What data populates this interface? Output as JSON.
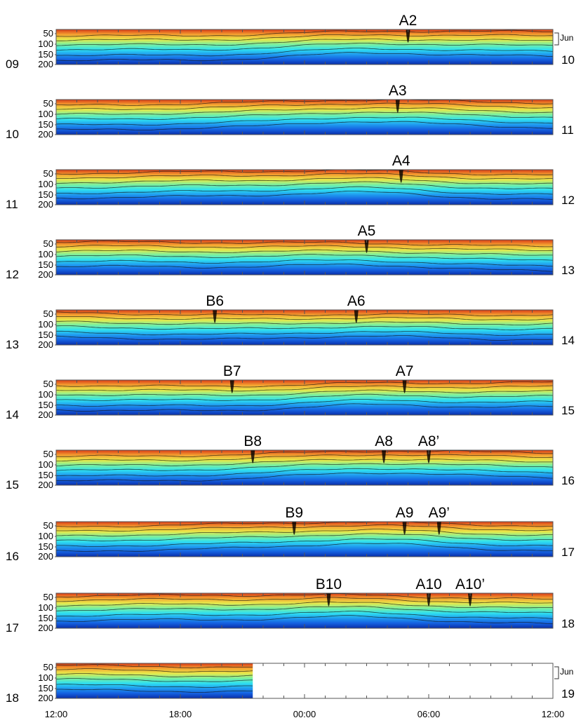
{
  "chart_data": {
    "type": "heatmap",
    "title": "",
    "xlabel": "",
    "ylabel": "",
    "ytick_labels": [
      "50",
      "100",
      "150",
      "200"
    ],
    "x_tick_labels": [
      "12:00",
      "18:00",
      "00:00",
      "06:00",
      "12:00"
    ],
    "month_label": "Jun",
    "colormap": [
      "#0a2fa8",
      "#1560e0",
      "#1f9cf0",
      "#2fe0f0",
      "#7af0a0",
      "#e8e84a",
      "#f5a030",
      "#d83a18"
    ],
    "panels": [
      {
        "start_day": "09",
        "end_day": "10",
        "show_month": true,
        "events": [
          {
            "label": "A2",
            "time": "05:00"
          }
        ]
      },
      {
        "start_day": "10",
        "end_day": "11",
        "show_month": false,
        "events": [
          {
            "label": "A3",
            "time": "04:30"
          }
        ]
      },
      {
        "start_day": "11",
        "end_day": "12",
        "show_month": false,
        "events": [
          {
            "label": "A4",
            "time": "04:40"
          }
        ]
      },
      {
        "start_day": "12",
        "end_day": "13",
        "show_month": false,
        "events": [
          {
            "label": "A5",
            "time": "03:00"
          }
        ]
      },
      {
        "start_day": "13",
        "end_day": "14",
        "show_month": false,
        "events": [
          {
            "label": "B6",
            "time": "19:40"
          },
          {
            "label": "A6",
            "time": "02:30"
          }
        ]
      },
      {
        "start_day": "14",
        "end_day": "15",
        "show_month": false,
        "events": [
          {
            "label": "B7",
            "time": "20:30"
          },
          {
            "label": "A7",
            "time": "04:50"
          }
        ]
      },
      {
        "start_day": "15",
        "end_day": "16",
        "show_month": false,
        "events": [
          {
            "label": "B8",
            "time": "21:30"
          },
          {
            "label": "A8",
            "time": "03:50"
          },
          {
            "label": "A8’",
            "time": "06:00"
          }
        ]
      },
      {
        "start_day": "16",
        "end_day": "17",
        "show_month": false,
        "events": [
          {
            "label": "B9",
            "time": "23:30"
          },
          {
            "label": "A9",
            "time": "04:50"
          },
          {
            "label": "A9’",
            "time": "06:30"
          }
        ]
      },
      {
        "start_day": "17",
        "end_day": "18",
        "show_month": false,
        "events": [
          {
            "label": "B10",
            "time": "01:10"
          },
          {
            "label": "A10",
            "time": "06:00"
          },
          {
            "label": "A10’",
            "time": "08:00"
          }
        ]
      },
      {
        "start_day": "18",
        "end_day": "19",
        "show_month": true,
        "data_until": "21:30",
        "events": []
      }
    ]
  }
}
